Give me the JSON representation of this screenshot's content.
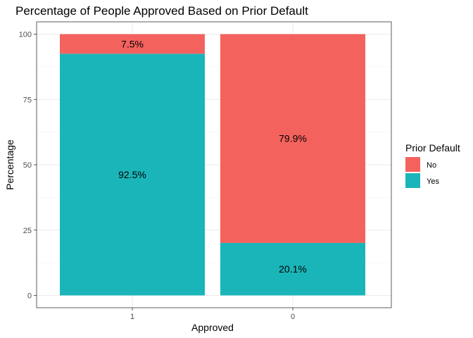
{
  "chart_data": {
    "type": "bar",
    "stacked": true,
    "title": "Percentage of People Approved Based on Prior Default",
    "xlabel": "Approved",
    "ylabel": "Percentage",
    "categories": [
      "1",
      "0"
    ],
    "ylim": [
      0,
      100
    ],
    "yticks": [
      0,
      25,
      50,
      75,
      100
    ],
    "grid": true,
    "legend": {
      "title": "Prior Default",
      "position": "right"
    },
    "series": [
      {
        "name": "Yes",
        "color": "#1ab5b9",
        "values": [
          92.5,
          20.1
        ],
        "labels": [
          "92.5%",
          "20.1%"
        ]
      },
      {
        "name": "No",
        "color": "#f4625e",
        "values": [
          7.5,
          79.9
        ],
        "labels": [
          "7.5%",
          "79.9%"
        ]
      }
    ]
  }
}
